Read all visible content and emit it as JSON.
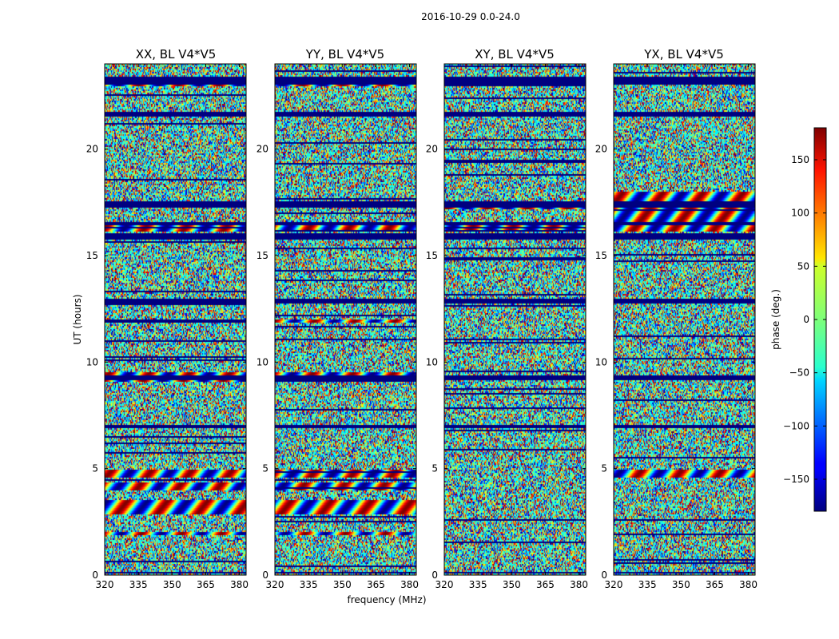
{
  "figure": {
    "suptitle": "2016-10-29 0.0-24.0",
    "xlabel": "frequency (MHz)",
    "ylabel": "UT (hours)",
    "colorbar_label": "phase (deg.)"
  },
  "chart_data": [
    {
      "type": "heatmap",
      "title": "XX, BL V4*V5",
      "xlabel": "frequency (MHz)",
      "ylabel": "UT (hours)",
      "xlim": [
        320,
        383
      ],
      "ylim": [
        0,
        24
      ],
      "xticks": [
        320,
        335,
        350,
        365,
        380
      ],
      "yticks": [
        0,
        5,
        10,
        15,
        20
      ],
      "value_range": [
        -180,
        180
      ],
      "colormap": "jet",
      "structured_bands_ut": [
        [
          23,
          23.3
        ],
        [
          11.9,
          12.0
        ],
        [
          9.1,
          9.6
        ],
        [
          4.6,
          5.0
        ],
        [
          4.0,
          4.4
        ],
        [
          2.9,
          3.6
        ],
        [
          1.9,
          2.1
        ],
        [
          16.2,
          16.5
        ]
      ]
    },
    {
      "type": "heatmap",
      "title": "YY, BL V4*V5",
      "xlabel": "frequency (MHz)",
      "ylabel": "UT (hours)",
      "xlim": [
        320,
        383
      ],
      "ylim": [
        0,
        24
      ],
      "xticks": [
        320,
        335,
        350,
        365,
        380
      ],
      "yticks": [
        0,
        5,
        10,
        15,
        20
      ],
      "value_range": [
        -180,
        180
      ],
      "colormap": "jet",
      "structured_bands_ut": [
        [
          23,
          23.3
        ],
        [
          11.9,
          12.0
        ],
        [
          9.1,
          9.6
        ],
        [
          4.6,
          5.0
        ],
        [
          4.0,
          4.4
        ],
        [
          2.9,
          3.6
        ],
        [
          1.9,
          2.1
        ],
        [
          16.2,
          16.5
        ]
      ]
    },
    {
      "type": "heatmap",
      "title": "XY, BL V4*V5",
      "xlabel": "frequency (MHz)",
      "ylabel": "UT (hours)",
      "xlim": [
        320,
        383
      ],
      "ylim": [
        0,
        24
      ],
      "xticks": [
        320,
        335,
        350,
        365,
        380
      ],
      "yticks": [
        0,
        5,
        10,
        15,
        20
      ],
      "value_range": [
        -180,
        180
      ],
      "colormap": "jet",
      "structured_bands_ut": [
        [
          17.2,
          17.3
        ],
        [
          16.2,
          16.5
        ]
      ]
    },
    {
      "type": "heatmap",
      "title": "YX, BL V4*V5",
      "xlabel": "frequency (MHz)",
      "ylabel": "UT (hours)",
      "xlim": [
        320,
        383
      ],
      "ylim": [
        0,
        24
      ],
      "xticks": [
        320,
        335,
        350,
        365,
        380
      ],
      "yticks": [
        0,
        5,
        10,
        15,
        20
      ],
      "value_range": [
        -180,
        180
      ],
      "colormap": "jet",
      "structured_bands_ut": [
        [
          16.2,
          18.0
        ],
        [
          4.6,
          5.0
        ]
      ]
    }
  ],
  "colorbar": {
    "range": [
      -180,
      180
    ],
    "ticks": [
      150,
      100,
      50,
      0,
      -50,
      -100,
      -150
    ],
    "tick_labels": [
      "150",
      "100",
      "50",
      "0",
      "−50",
      "−100",
      "−150"
    ],
    "colormap": "jet"
  },
  "flagged_bands_ut": [
    [
      23.1,
      23.4
    ],
    [
      21.6,
      21.8
    ],
    [
      17.3,
      17.6
    ],
    [
      16.5,
      16.6
    ],
    [
      15.8,
      16.1
    ],
    [
      12.8,
      13.0
    ],
    [
      9.2,
      9.4
    ],
    [
      6.9,
      7.1
    ],
    [
      0.1,
      0.2
    ]
  ],
  "colors": {
    "flagged": "#00007f",
    "frame": "#000000",
    "background": "#ffffff"
  }
}
